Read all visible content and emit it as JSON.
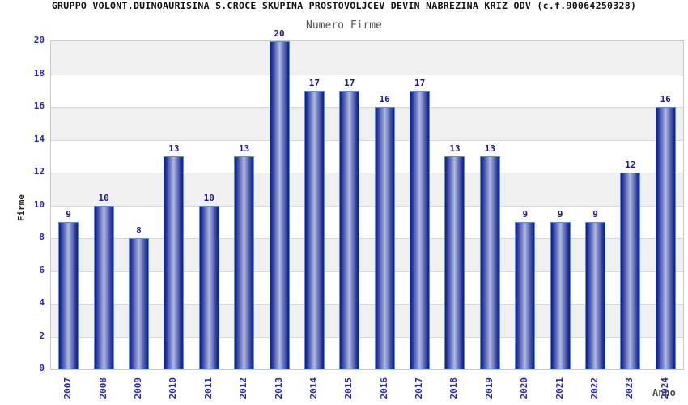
{
  "header": {
    "title": "GRUPPO VOLONT.DUINOAURISINA S.CROCE SKUPINA PROSTOVOLJCEV DEVIN NABREZINA KRIZ ODV (c.f.90064250328)",
    "subtitle": "Numero Firme"
  },
  "chart_data": {
    "type": "bar",
    "title": "GRUPPO VOLONT.DUINOAURISINA S.CROCE SKUPINA PROSTOVOLJCEV DEVIN NABREZINA KRIZ ODV (c.f.90064250328)",
    "subtitle": "Numero Firme",
    "xlabel": "Anno",
    "ylabel": "Firme",
    "categories": [
      "2007",
      "2008",
      "2009",
      "2010",
      "2011",
      "2012",
      "2013",
      "2014",
      "2015",
      "2016",
      "2017",
      "2018",
      "2019",
      "2020",
      "2021",
      "2022",
      "2023",
      "2024"
    ],
    "values": [
      9,
      10,
      8,
      13,
      10,
      13,
      20,
      17,
      17,
      16,
      17,
      13,
      13,
      9,
      9,
      9,
      12,
      16
    ],
    "ylim": [
      0,
      20
    ],
    "ytick_step": 2,
    "grid": "horizontal-alternating-bands",
    "legend": "none",
    "bar_value_labels": true,
    "colors": {
      "title": "#111111",
      "subtitle": "#555555",
      "tick_label": "#2323cc",
      "value_label": "#1b1b8a",
      "axis_label": "#222222",
      "xlabel_text": "#4a4a4a",
      "bar_edge": "#151b80",
      "bar_mid": "#a0abd8",
      "bar_border": "#4d93ee",
      "band_gray": "#f0f0f0",
      "band_white": "#ffffff",
      "grid_line": "#d9d9d9",
      "plot_border": "#c9c9c9",
      "background": "#ffffff"
    }
  }
}
